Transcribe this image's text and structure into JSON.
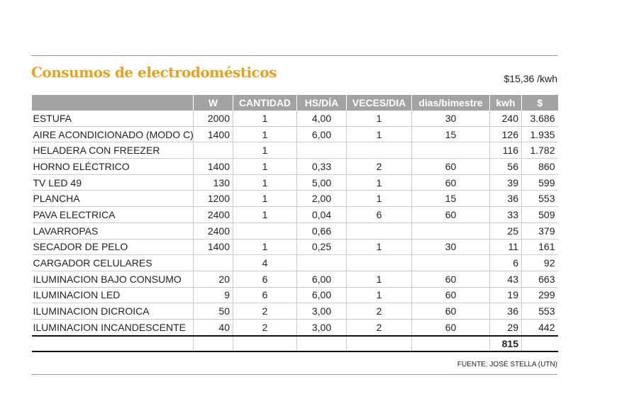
{
  "header": {
    "title": "Consumos de electrodomésticos",
    "rate": "$15,36 /kwh"
  },
  "table": {
    "columns": [
      null,
      "W",
      "CANTIDAD",
      "HS/DÍA",
      "VECES/DIA",
      "dias/bimestre",
      "kwh",
      "$"
    ],
    "rows": [
      [
        "ESTUFA",
        "2000",
        "1",
        "4,00",
        "1",
        "30",
        "240",
        "3.686"
      ],
      [
        "AIRE ACONDICIONADO (MODO C)",
        "1400",
        "1",
        "6,00",
        "1",
        "15",
        "126",
        "1.935"
      ],
      [
        "HELADERA CON FREEZER",
        null,
        "1",
        null,
        null,
        null,
        "116",
        "1.782"
      ],
      [
        "HORNO ELÉCTRICO",
        "1400",
        "1",
        "0,33",
        "2",
        "60",
        "56",
        "860"
      ],
      [
        "TV LED 49",
        "130",
        "1",
        "5,00",
        "1",
        "60",
        "39",
        "599"
      ],
      [
        "PLANCHA",
        "1200",
        "1",
        "2,00",
        "1",
        "15",
        "36",
        "553"
      ],
      [
        "PAVA ELECTRICA",
        "2400",
        "1",
        "0,04",
        "6",
        "60",
        "33",
        "509"
      ],
      [
        "LAVARROPAS",
        "2400",
        null,
        "0,66",
        null,
        null,
        "25",
        "379"
      ],
      [
        "SECADOR DE PELO",
        "1400",
        "1",
        "0,25",
        "1",
        "30",
        "11",
        "161"
      ],
      [
        "CARGADOR CELULARES",
        null,
        "4",
        null,
        null,
        null,
        "6",
        "92"
      ],
      [
        "ILUMINACION BAJO CONSUMO",
        "20",
        "6",
        "6,00",
        "1",
        "60",
        "43",
        "663"
      ],
      [
        "ILUMINACION LED",
        "9",
        "6",
        "6,00",
        "1",
        "60",
        "19",
        "299"
      ],
      [
        "ILUMINACION DICROICA",
        "50",
        "2",
        "3,00",
        "2",
        "60",
        "36",
        "553"
      ],
      [
        "ILUMINACION INCANDESCENTE",
        "40",
        "2",
        "3,00",
        "2",
        "60",
        "29",
        "442"
      ]
    ],
    "total": [
      null,
      null,
      null,
      null,
      null,
      null,
      "815",
      null
    ]
  },
  "footer": {
    "source": "FUENTE: JOSÉ STELLA (UTN)"
  }
}
